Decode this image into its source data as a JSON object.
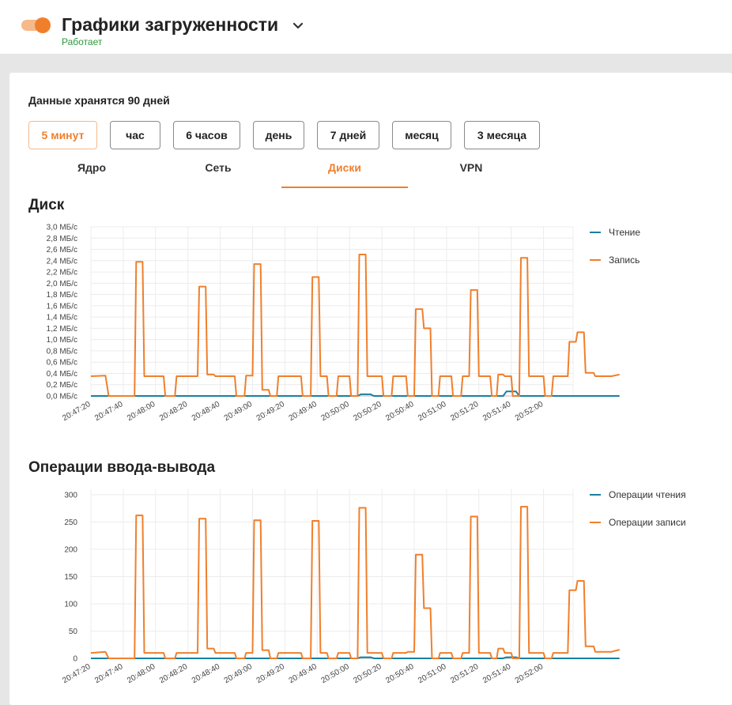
{
  "header": {
    "title": "Графики загруженности",
    "status": "Работает",
    "status_color": "#2c9a3c",
    "toggle_icon": "toggle-switch-on",
    "expand_icon": "chevron-down-icon"
  },
  "colors": {
    "accent": "#f07f2c",
    "read": "#1a7fa0",
    "write": "#f07f2c"
  },
  "retention_text": "Данные хранятся 90 дней",
  "ranges": [
    {
      "label": "5 минут",
      "active": true
    },
    {
      "label": "час",
      "active": false
    },
    {
      "label": "6 часов",
      "active": false
    },
    {
      "label": "день",
      "active": false
    },
    {
      "label": "7 дней",
      "active": false
    },
    {
      "label": "месяц",
      "active": false
    },
    {
      "label": "3 месяца",
      "active": false
    }
  ],
  "tabs": [
    {
      "label": "Ядро",
      "active": false
    },
    {
      "label": "Сеть",
      "active": false
    },
    {
      "label": "Диски",
      "active": true
    },
    {
      "label": "VPN",
      "active": false
    }
  ],
  "chart_data": [
    {
      "type": "line",
      "title": "Диск",
      "x": [
        "20:47:20",
        "20:47:30",
        "20:47:40",
        "20:47:50",
        "20:48:00",
        "20:48:10",
        "20:48:20",
        "20:48:30",
        "20:48:40",
        "20:48:50",
        "20:49:00",
        "20:49:10",
        "20:49:20",
        "20:49:30",
        "20:49:40",
        "20:49:50",
        "20:50:00",
        "20:50:10",
        "20:50:20",
        "20:50:30",
        "20:50:40",
        "20:50:50",
        "20:51:00",
        "20:51:10",
        "20:51:20",
        "20:51:30",
        "20:51:40",
        "20:51:50",
        "20:52:00",
        "20:52:10"
      ],
      "xticks": [
        "20:47:20",
        "20:47:40",
        "20:48:00",
        "20:48:20",
        "20:48:40",
        "20:49:00",
        "20:49:20",
        "20:49:40",
        "20:50:00",
        "20:50:20",
        "20:50:40",
        "20:51:00",
        "20:51:20",
        "20:51:40",
        "20:52:00"
      ],
      "yticks": [
        "0,0 МБ/с",
        "0,2 МБ/с",
        "0,4 МБ/с",
        "0,6 МБ/с",
        "0,8 МБ/с",
        "1,0 МБ/с",
        "1,2 МБ/с",
        "1,4 МБ/с",
        "1,6 МБ/с",
        "1,8 МБ/с",
        "2,0 МБ/с",
        "2,2 МБ/с",
        "2,4 МБ/с",
        "2,6 МБ/с",
        "2,8 МБ/с",
        "3,0 МБ/с"
      ],
      "ylim": [
        0,
        3.0
      ],
      "grid": true,
      "legend_position": "right",
      "series": [
        {
          "name": "Чтение",
          "color": "#1a7fa0",
          "points": [
            [
              0,
              0
            ],
            [
              16.5,
              0
            ],
            [
              16.7,
              0.03
            ],
            [
              17.3,
              0.03
            ],
            [
              17.5,
              0
            ],
            [
              25.5,
              0
            ],
            [
              25.7,
              0.08
            ],
            [
              26.3,
              0.08
            ],
            [
              26.5,
              0
            ],
            [
              32.7,
              0
            ]
          ]
        },
        {
          "name": "Запись",
          "color": "#f07f2c",
          "points": [
            [
              0,
              0.35
            ],
            [
              0.9,
              0.36
            ],
            [
              1.1,
              0
            ],
            [
              2.7,
              0
            ],
            [
              2.8,
              2.38
            ],
            [
              3.2,
              2.38
            ],
            [
              3.3,
              0.35
            ],
            [
              4.5,
              0.35
            ],
            [
              4.6,
              0
            ],
            [
              5.2,
              0
            ],
            [
              5.3,
              0.35
            ],
            [
              6.0,
              0.35
            ],
            [
              6.1,
              0.35
            ],
            [
              6.6,
              0.35
            ],
            [
              6.7,
              1.94
            ],
            [
              7.1,
              1.94
            ],
            [
              7.2,
              0.38
            ],
            [
              7.6,
              0.38
            ],
            [
              7.7,
              0.35
            ],
            [
              8.9,
              0.35
            ],
            [
              9.0,
              0
            ],
            [
              9.5,
              0
            ],
            [
              9.6,
              0.36
            ],
            [
              10.0,
              0.36
            ],
            [
              10.1,
              2.34
            ],
            [
              10.5,
              2.34
            ],
            [
              10.6,
              0.11
            ],
            [
              11.0,
              0.11
            ],
            [
              11.1,
              0
            ],
            [
              11.5,
              0
            ],
            [
              11.6,
              0.35
            ],
            [
              13.0,
              0.35
            ],
            [
              13.1,
              0
            ],
            [
              13.6,
              0
            ],
            [
              13.7,
              2.11
            ],
            [
              14.1,
              2.11
            ],
            [
              14.2,
              0.35
            ],
            [
              14.6,
              0.35
            ],
            [
              14.7,
              0
            ],
            [
              15.2,
              0
            ],
            [
              15.3,
              0.35
            ],
            [
              16.0,
              0.35
            ],
            [
              16.1,
              0
            ],
            [
              16.5,
              0
            ],
            [
              16.6,
              2.51
            ],
            [
              17.0,
              2.51
            ],
            [
              17.1,
              0.35
            ],
            [
              18.0,
              0.35
            ],
            [
              18.1,
              0
            ],
            [
              18.6,
              0
            ],
            [
              18.7,
              0.35
            ],
            [
              19.5,
              0.35
            ],
            [
              19.6,
              0
            ],
            [
              20.0,
              0
            ],
            [
              20.1,
              1.54
            ],
            [
              20.5,
              1.54
            ],
            [
              20.6,
              1.2
            ],
            [
              21.0,
              1.2
            ],
            [
              21.1,
              0
            ],
            [
              21.5,
              0
            ],
            [
              21.6,
              0.35
            ],
            [
              22.3,
              0.35
            ],
            [
              22.4,
              0
            ],
            [
              22.9,
              0
            ],
            [
              23.0,
              0.35
            ],
            [
              23.4,
              0.35
            ],
            [
              23.5,
              1.88
            ],
            [
              23.9,
              1.88
            ],
            [
              24.0,
              0.35
            ],
            [
              24.7,
              0.35
            ],
            [
              24.8,
              0
            ],
            [
              25.1,
              0
            ],
            [
              25.2,
              0.38
            ],
            [
              25.5,
              0.38
            ],
            [
              25.6,
              0.35
            ],
            [
              26.0,
              0.35
            ],
            [
              26.1,
              0
            ],
            [
              26.5,
              0
            ],
            [
              26.6,
              2.45
            ],
            [
              27.0,
              2.45
            ],
            [
              27.1,
              0.35
            ],
            [
              28.0,
              0.35
            ],
            [
              28.1,
              0
            ],
            [
              28.5,
              0
            ],
            [
              28.6,
              0.35
            ],
            [
              29.5,
              0.35
            ],
            [
              29.6,
              0.96
            ],
            [
              30.0,
              0.96
            ],
            [
              30.1,
              1.13
            ],
            [
              30.5,
              1.13
            ],
            [
              30.6,
              0.41
            ],
            [
              31.1,
              0.41
            ],
            [
              31.2,
              0.35
            ],
            [
              32.2,
              0.35
            ],
            [
              32.7,
              0.38
            ]
          ]
        }
      ]
    },
    {
      "type": "line",
      "title": "Операции ввода-вывода",
      "x": [
        "20:47:20",
        "20:47:30",
        "20:47:40",
        "20:47:50",
        "20:48:00",
        "20:48:10",
        "20:48:20",
        "20:48:30",
        "20:48:40",
        "20:48:50",
        "20:49:00",
        "20:49:10",
        "20:49:20",
        "20:49:30",
        "20:49:40",
        "20:49:50",
        "20:50:00",
        "20:50:10",
        "20:50:20",
        "20:50:30",
        "20:50:40",
        "20:50:50",
        "20:51:00",
        "20:51:10",
        "20:51:20",
        "20:51:30",
        "20:51:40",
        "20:51:50",
        "20:52:00",
        "20:52:10"
      ],
      "xticks": [
        "20:47:20",
        "20:47:40",
        "20:48:00",
        "20:48:20",
        "20:48:40",
        "20:49:00",
        "20:49:20",
        "20:49:40",
        "20:50:00",
        "20:50:20",
        "20:50:40",
        "20:51:00",
        "20:51:20",
        "20:51:40",
        "20:52:00"
      ],
      "yticks": [
        "0",
        "50",
        "100",
        "150",
        "200",
        "250",
        "300"
      ],
      "ylim": [
        0,
        310
      ],
      "grid": true,
      "legend_position": "right",
      "series": [
        {
          "name": "Операции чтения",
          "color": "#1a7fa0",
          "points": [
            [
              0,
              0
            ],
            [
              16.5,
              0
            ],
            [
              16.7,
              2
            ],
            [
              17.3,
              2
            ],
            [
              17.5,
              0
            ],
            [
              25.5,
              0
            ],
            [
              25.7,
              2
            ],
            [
              26.3,
              2
            ],
            [
              26.5,
              0
            ],
            [
              32.7,
              0
            ]
          ]
        },
        {
          "name": "Операции записи",
          "color": "#f07f2c",
          "points": [
            [
              0,
              10
            ],
            [
              0.9,
              12
            ],
            [
              1.1,
              0
            ],
            [
              2.7,
              0
            ],
            [
              2.8,
              262
            ],
            [
              3.2,
              262
            ],
            [
              3.3,
              10
            ],
            [
              4.5,
              10
            ],
            [
              4.6,
              0
            ],
            [
              5.2,
              0
            ],
            [
              5.3,
              10
            ],
            [
              6.6,
              10
            ],
            [
              6.7,
              256
            ],
            [
              7.1,
              256
            ],
            [
              7.2,
              18
            ],
            [
              7.6,
              18
            ],
            [
              7.7,
              10
            ],
            [
              8.9,
              10
            ],
            [
              9.0,
              0
            ],
            [
              9.5,
              0
            ],
            [
              9.6,
              10
            ],
            [
              10.0,
              10
            ],
            [
              10.1,
              253
            ],
            [
              10.5,
              253
            ],
            [
              10.6,
              15
            ],
            [
              11.0,
              15
            ],
            [
              11.1,
              0
            ],
            [
              11.5,
              0
            ],
            [
              11.6,
              10
            ],
            [
              13.0,
              10
            ],
            [
              13.1,
              0
            ],
            [
              13.6,
              0
            ],
            [
              13.7,
              252
            ],
            [
              14.1,
              252
            ],
            [
              14.2,
              10
            ],
            [
              14.6,
              10
            ],
            [
              14.7,
              0
            ],
            [
              15.2,
              0
            ],
            [
              15.3,
              10
            ],
            [
              16.0,
              10
            ],
            [
              16.1,
              0
            ],
            [
              16.5,
              0
            ],
            [
              16.6,
              276
            ],
            [
              17.0,
              276
            ],
            [
              17.1,
              10
            ],
            [
              18.0,
              10
            ],
            [
              18.1,
              0
            ],
            [
              18.6,
              0
            ],
            [
              18.7,
              10
            ],
            [
              19.5,
              10
            ],
            [
              19.6,
              12
            ],
            [
              20.0,
              12
            ],
            [
              20.1,
              190
            ],
            [
              20.5,
              190
            ],
            [
              20.6,
              92
            ],
            [
              21.0,
              92
            ],
            [
              21.1,
              0
            ],
            [
              21.5,
              0
            ],
            [
              21.6,
              10
            ],
            [
              22.3,
              10
            ],
            [
              22.4,
              0
            ],
            [
              22.9,
              0
            ],
            [
              23.0,
              10
            ],
            [
              23.4,
              10
            ],
            [
              23.5,
              260
            ],
            [
              23.9,
              260
            ],
            [
              24.0,
              10
            ],
            [
              24.7,
              10
            ],
            [
              24.8,
              0
            ],
            [
              25.1,
              0
            ],
            [
              25.2,
              18
            ],
            [
              25.5,
              18
            ],
            [
              25.6,
              10
            ],
            [
              26.0,
              10
            ],
            [
              26.1,
              0
            ],
            [
              26.5,
              0
            ],
            [
              26.6,
              278
            ],
            [
              27.0,
              278
            ],
            [
              27.1,
              10
            ],
            [
              28.0,
              10
            ],
            [
              28.1,
              0
            ],
            [
              28.5,
              0
            ],
            [
              28.6,
              10
            ],
            [
              29.5,
              10
            ],
            [
              29.6,
              125
            ],
            [
              30.0,
              125
            ],
            [
              30.1,
              142
            ],
            [
              30.5,
              142
            ],
            [
              30.6,
              22
            ],
            [
              31.1,
              22
            ],
            [
              31.2,
              12
            ],
            [
              32.2,
              12
            ],
            [
              32.7,
              16
            ]
          ]
        }
      ]
    }
  ]
}
